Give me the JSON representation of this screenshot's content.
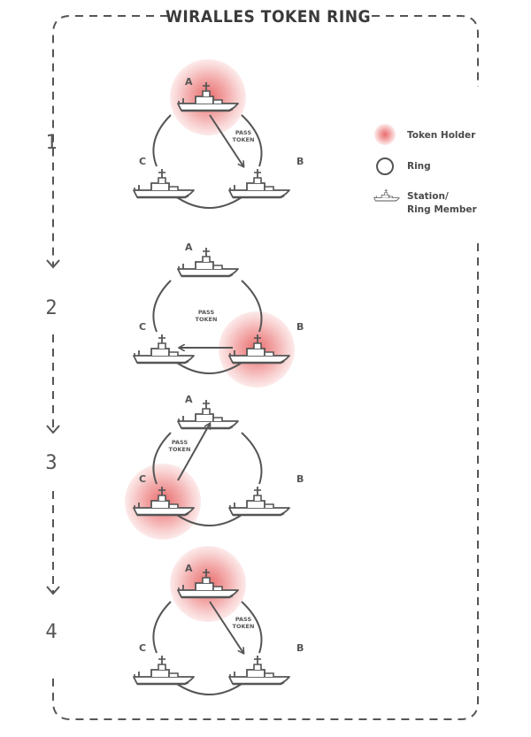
{
  "title": "WIRALLES TOKEN RING",
  "legend": [
    {
      "icon": "token-holder-icon",
      "label": "Token Holder"
    },
    {
      "icon": "ring-icon",
      "label": "Ring"
    },
    {
      "icon": "ship-icon",
      "label_lines": [
        "Station/",
        "Ring Member"
      ]
    }
  ],
  "stations": [
    "A",
    "B",
    "C"
  ],
  "pass_label": [
    "PASS",
    "TOKEN"
  ],
  "steps": [
    {
      "number": "1",
      "holder": "A",
      "pass_to": "B"
    },
    {
      "number": "2",
      "holder": "B",
      "pass_to": "C"
    },
    {
      "number": "3",
      "holder": "C",
      "pass_to": "A"
    },
    {
      "number": "4",
      "holder": "A",
      "pass_to": "B"
    }
  ],
  "colors": {
    "line": "#555555",
    "dash": "#555555",
    "token_glow": [
      "#fbe3e3",
      "#f7c6c6",
      "#f3a8a8",
      "#ee8c8c",
      "#e87474"
    ]
  }
}
